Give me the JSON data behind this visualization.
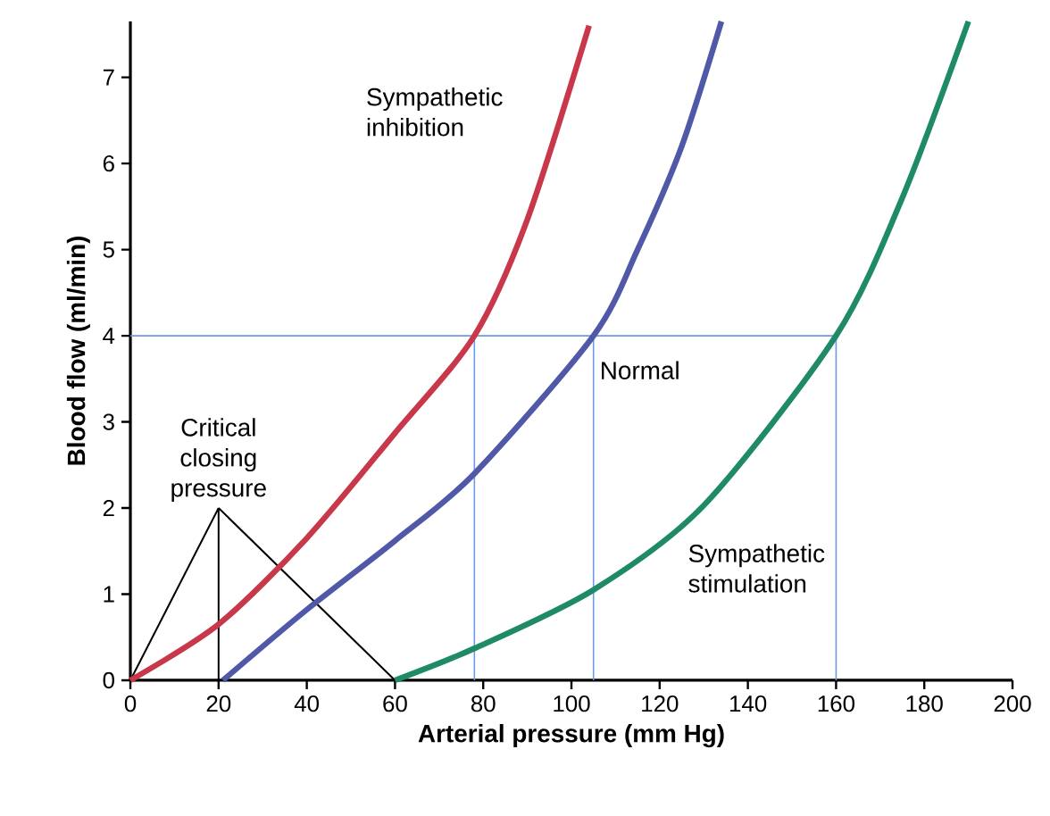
{
  "chart_data": {
    "type": "line",
    "xlabel": "Arterial pressure (mm Hg)",
    "ylabel": "Blood flow (ml/min)",
    "xlim": [
      0,
      200
    ],
    "ylim": [
      0,
      7.65
    ],
    "xticks": [
      0,
      20,
      40,
      60,
      80,
      100,
      120,
      140,
      160,
      180,
      200
    ],
    "yticks": [
      0,
      1,
      2,
      3,
      4,
      5,
      6,
      7
    ],
    "marker": "none",
    "line_style": "solid",
    "series": [
      {
        "name": "Sympathetic inhibition",
        "color": "#c8374a",
        "x": [
          0,
          20,
          40,
          60,
          78,
          90,
          104
        ],
        "values": [
          0,
          0.65,
          1.65,
          2.87,
          4,
          5.35,
          7.6
        ]
      },
      {
        "name": "Normal",
        "color": "#5058a8",
        "x": [
          21,
          40,
          60,
          78,
          105,
          115,
          125,
          134
        ],
        "values": [
          0,
          0.82,
          1.62,
          2.4,
          4,
          5,
          6.2,
          7.65
        ]
      },
      {
        "name": "Sympathetic stimulation",
        "color": "#1e8a66",
        "x": [
          60,
          78,
          105,
          130,
          160,
          175,
          190
        ],
        "values": [
          0,
          0.37,
          1.05,
          2.03,
          4,
          5.6,
          7.65
        ]
      }
    ],
    "ref_lines": [
      {
        "axis": "y",
        "value": 4,
        "label": null,
        "color": "#6a9ae8"
      },
      {
        "axis": "x",
        "value": 78,
        "label": null,
        "color": "#6a9ae8"
      },
      {
        "axis": "x",
        "value": 105,
        "label": null,
        "color": "#6a9ae8"
      },
      {
        "axis": "x",
        "value": 160,
        "label": null,
        "color": "#6a9ae8"
      }
    ],
    "annotations": [
      {
        "text": "Critical closing pressure",
        "x": 20,
        "y": 0
      }
    ]
  }
}
